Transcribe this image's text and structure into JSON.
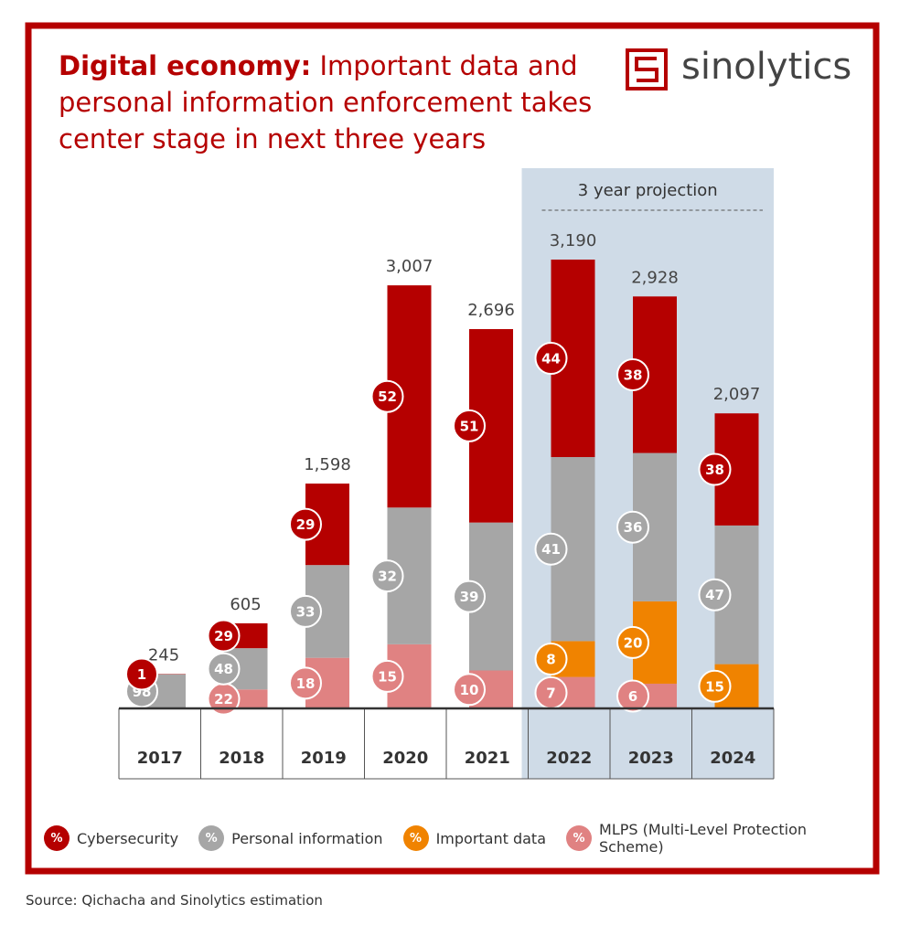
{
  "chart_data": {
    "type": "stacked_bar",
    "title_lead": "Digital economy:",
    "title": "Important data and personal information enforcement takes center stage in next three years",
    "brand": "sinolytics",
    "categories": [
      "2017",
      "2018",
      "2019",
      "2020",
      "2021",
      "2022",
      "2023",
      "2024"
    ],
    "totals": {
      "values": [
        245,
        605,
        1598,
        3007,
        2696,
        3190,
        2928,
        2097
      ],
      "value_labels": [
        "245",
        "605",
        "1,598",
        "3,007",
        "2,696",
        "3,190",
        "2,928",
        "2,097"
      ]
    },
    "series": [
      {
        "name": "MLPS (Multi-Level Protection Scheme)",
        "color": "#e08282",
        "values": [
          null,
          22,
          18,
          15,
          10,
          7,
          6,
          null
        ]
      },
      {
        "name": "Important data",
        "color": "#f08300",
        "values": [
          null,
          null,
          null,
          null,
          null,
          8,
          20,
          15
        ]
      },
      {
        "name": "Personal information",
        "color": "#a6a6a6",
        "values": [
          98,
          48,
          33,
          32,
          39,
          41,
          36,
          47
        ]
      },
      {
        "name": "Cybersecurity",
        "color": "#b50000",
        "values": [
          1,
          29,
          29,
          52,
          51,
          44,
          38,
          38
        ]
      }
    ],
    "legend_symbol": "%",
    "projection": {
      "label": "3 year projection",
      "from": "2022"
    },
    "source": "Source: Qichacha and Sinolytics estimation"
  }
}
